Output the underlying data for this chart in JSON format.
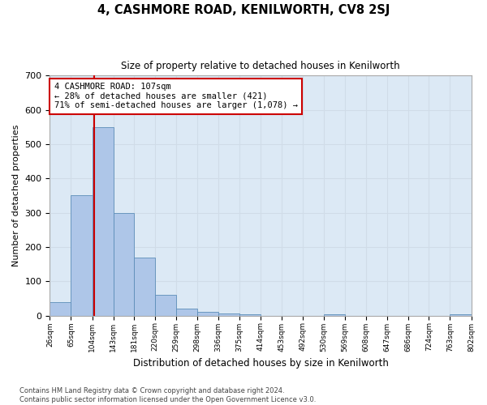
{
  "title": "4, CASHMORE ROAD, KENILWORTH, CV8 2SJ",
  "subtitle": "Size of property relative to detached houses in Kenilworth",
  "xlabel": "Distribution of detached houses by size in Kenilworth",
  "ylabel": "Number of detached properties",
  "bin_edges": [
    26,
    65,
    104,
    143,
    181,
    220,
    259,
    298,
    336,
    375,
    414,
    453,
    492,
    530,
    569,
    608,
    647,
    686,
    724,
    763,
    802
  ],
  "bar_heights": [
    40,
    350,
    550,
    300,
    170,
    60,
    20,
    10,
    7,
    5,
    0,
    0,
    0,
    5,
    0,
    0,
    0,
    0,
    0,
    5
  ],
  "bar_color": "#aec6e8",
  "bar_edge_color": "#5b8db8",
  "property_size": 107,
  "annotation_text": "4 CASHMORE ROAD: 107sqm\n← 28% of detached houses are smaller (421)\n71% of semi-detached houses are larger (1,078) →",
  "annotation_box_color": "#ffffff",
  "annotation_box_edge_color": "#cc0000",
  "vline_color": "#cc0000",
  "ylim": [
    0,
    700
  ],
  "yticks": [
    0,
    100,
    200,
    300,
    400,
    500,
    600,
    700
  ],
  "grid_color": "#d0dce8",
  "plot_bg_color": "#dce9f5",
  "fig_bg_color": "#ffffff",
  "footer_line1": "Contains HM Land Registry data © Crown copyright and database right 2024.",
  "footer_line2": "Contains public sector information licensed under the Open Government Licence v3.0."
}
